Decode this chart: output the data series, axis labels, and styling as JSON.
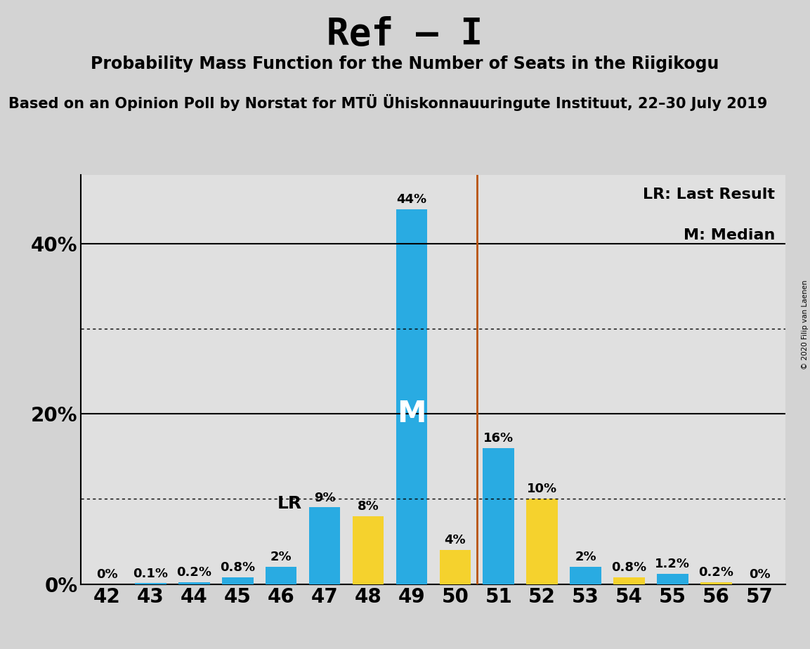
{
  "title": "Ref – I",
  "subtitle": "Probability Mass Function for the Number of Seats in the Riigikogu",
  "source": "Based on an Opinion Poll by Norstat for MTÜ Ühiskonnauuringute Instituut, 22–30 July 2019",
  "copyright": "© 2020 Filip van Laenen",
  "seats": [
    42,
    43,
    44,
    45,
    46,
    47,
    48,
    49,
    50,
    51,
    52,
    53,
    54,
    55,
    56,
    57
  ],
  "blue_values": [
    0.0,
    0.1,
    0.2,
    0.8,
    2.0,
    9.0,
    0.0,
    44.0,
    0.0,
    16.0,
    0.0,
    2.0,
    0.0,
    1.2,
    0.0,
    0.0
  ],
  "yellow_values": [
    0.0,
    0.0,
    0.0,
    0.0,
    0.0,
    0.0,
    8.0,
    0.0,
    4.0,
    0.0,
    10.0,
    0.0,
    0.8,
    0.0,
    0.2,
    0.0
  ],
  "blue_labels": [
    "0%",
    "0.1%",
    "0.2%",
    "0.8%",
    "2%",
    "9%",
    "",
    "44%",
    "",
    "16%",
    "",
    "2%",
    "",
    "1.2%",
    "",
    "0%"
  ],
  "yellow_labels": [
    "",
    "",
    "",
    "",
    "",
    "",
    "8%",
    "",
    "4%",
    "",
    "10%",
    "",
    "0.8%",
    "",
    "0.2%",
    ""
  ],
  "blue_color": "#29ABE2",
  "yellow_color": "#F5D22D",
  "background_color": "#D3D3D3",
  "plot_background_color": "#E0E0E0",
  "median_seat": 49,
  "lr_seat": 47,
  "ylim": [
    0,
    48
  ],
  "solid_yticks": [
    0,
    20,
    40
  ],
  "dotted_yticks": [
    10,
    30
  ],
  "ytick_labels": [
    "0%",
    "20%",
    "40%"
  ],
  "legend_text1": "LR: Last Result",
  "legend_text2": "M: Median",
  "bar_width": 0.72,
  "title_fontsize": 38,
  "subtitle_fontsize": 17,
  "source_fontsize": 15,
  "tick_fontsize": 20,
  "bar_label_fontsize": 13,
  "legend_fontsize": 16,
  "m_label_fontsize": 30,
  "lr_label_fontsize": 18,
  "vertical_line_color": "#B8520A",
  "spine_color": "#000000"
}
